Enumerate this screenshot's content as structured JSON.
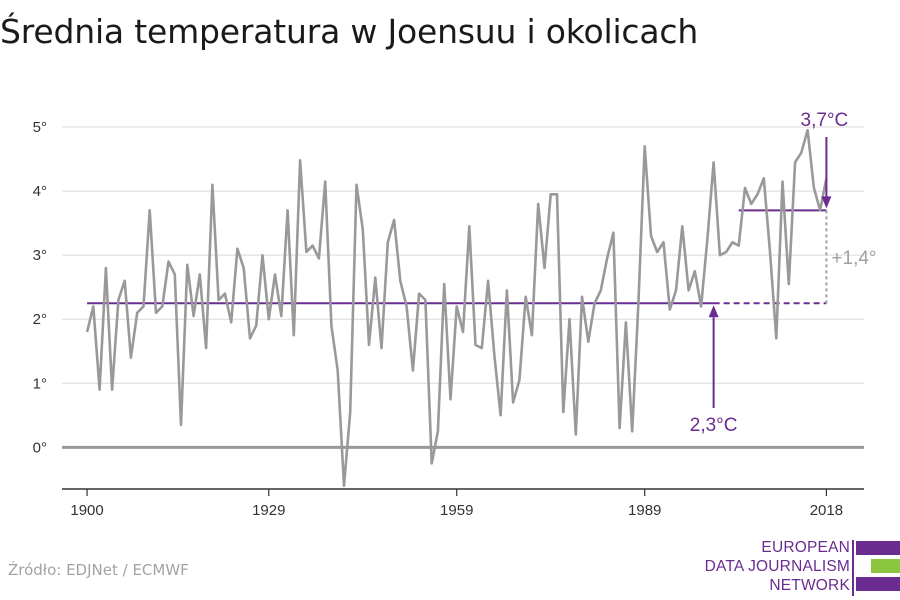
{
  "title": "Średnia temperatura w Joensuu i okolicach",
  "source": "Źródło: EDJNet / ECMWF",
  "logo": {
    "lines": [
      "EUROPEAN",
      "DATA JOURNALISM",
      "NETWORK"
    ],
    "colors": {
      "purple": "#6a2c91",
      "green": "#8cc63f"
    }
  },
  "colors": {
    "line": "#999999",
    "accent": "#6a2c91",
    "grid": "#d9d9d9",
    "zero": "#999999",
    "diff": "#a0a0a0"
  },
  "chart_data": {
    "type": "line",
    "title": "Średnia temperatura w Joensuu i okolicach",
    "xlabel": "",
    "ylabel": "",
    "ylim": [
      -0.65,
      5.5
    ],
    "xlim": [
      1896,
      2024
    ],
    "yticks": [
      0,
      1,
      2,
      3,
      4,
      5
    ],
    "ytick_labels": [
      "0°",
      "1°",
      "2°",
      "3°",
      "4°",
      "5°"
    ],
    "xticks": [
      1900,
      1929,
      1959,
      1989,
      2018
    ],
    "xtick_labels": [
      "1900",
      "1929",
      "1959",
      "1989",
      "2018"
    ],
    "grid": true,
    "x": [
      1900,
      1901,
      1902,
      1903,
      1904,
      1905,
      1906,
      1907,
      1908,
      1909,
      1910,
      1911,
      1912,
      1913,
      1914,
      1915,
      1916,
      1917,
      1918,
      1919,
      1920,
      1921,
      1922,
      1923,
      1924,
      1925,
      1926,
      1927,
      1928,
      1929,
      1930,
      1931,
      1932,
      1933,
      1934,
      1935,
      1936,
      1937,
      1938,
      1939,
      1940,
      1941,
      1942,
      1943,
      1944,
      1945,
      1946,
      1947,
      1948,
      1949,
      1950,
      1951,
      1952,
      1953,
      1954,
      1955,
      1956,
      1957,
      1958,
      1959,
      1960,
      1961,
      1962,
      1963,
      1964,
      1965,
      1966,
      1967,
      1968,
      1969,
      1970,
      1971,
      1972,
      1973,
      1974,
      1975,
      1976,
      1977,
      1978,
      1979,
      1980,
      1981,
      1982,
      1983,
      1984,
      1985,
      1986,
      1987,
      1988,
      1989,
      1990,
      1991,
      1992,
      1993,
      1994,
      1995,
      1996,
      1997,
      1998,
      1999,
      2000,
      2001,
      2002,
      2003,
      2004,
      2005,
      2006,
      2007,
      2008,
      2009,
      2010,
      2011,
      2012,
      2013,
      2014,
      2015,
      2016,
      2017,
      2018
    ],
    "series": [
      {
        "values": [
          1.8,
          2.2,
          0.9,
          2.8,
          0.9,
          2.3,
          2.6,
          1.4,
          2.1,
          2.2,
          3.7,
          2.1,
          2.2,
          2.9,
          2.7,
          0.35,
          2.85,
          2.05,
          2.7,
          1.55,
          4.1,
          2.3,
          2.4,
          1.95,
          3.1,
          2.8,
          1.7,
          1.9,
          3.0,
          2.0,
          2.7,
          2.05,
          3.7,
          1.75,
          4.48,
          3.05,
          3.15,
          2.95,
          4.15,
          1.9,
          1.2,
          -0.6,
          0.55,
          4.1,
          3.4,
          1.6,
          2.65,
          1.55,
          3.2,
          3.55,
          2.6,
          2.2,
          1.2,
          2.4,
          2.3,
          -0.25,
          0.25,
          2.55,
          0.75,
          2.2,
          1.8,
          3.45,
          1.6,
          1.55,
          2.6,
          1.45,
          0.5,
          2.45,
          0.7,
          1.05,
          2.35,
          1.75,
          3.8,
          2.8,
          3.95,
          3.95,
          0.55,
          2.0,
          0.2,
          2.35,
          1.65,
          2.25,
          2.45,
          2.95,
          3.35,
          0.3,
          1.95,
          0.25,
          2.25,
          4.7,
          3.3,
          3.05,
          3.2,
          2.15,
          2.45,
          3.45,
          2.45,
          2.75,
          2.2,
          3.25,
          4.45,
          3.0,
          3.05,
          3.2,
          3.15,
          4.05,
          3.8,
          3.95,
          4.2,
          3.05,
          1.7,
          4.15,
          2.55,
          4.45,
          4.6,
          4.95,
          4.05,
          3.7,
          4.2
        ]
      }
    ],
    "baseline": {
      "value": 2.25,
      "from": 1900,
      "to": 2018,
      "label": "2,3°C"
    },
    "recent": {
      "value": 3.7,
      "from": 2004,
      "to": 2018,
      "label": "3,7°C"
    },
    "difference": {
      "label": "+1,4°"
    }
  }
}
